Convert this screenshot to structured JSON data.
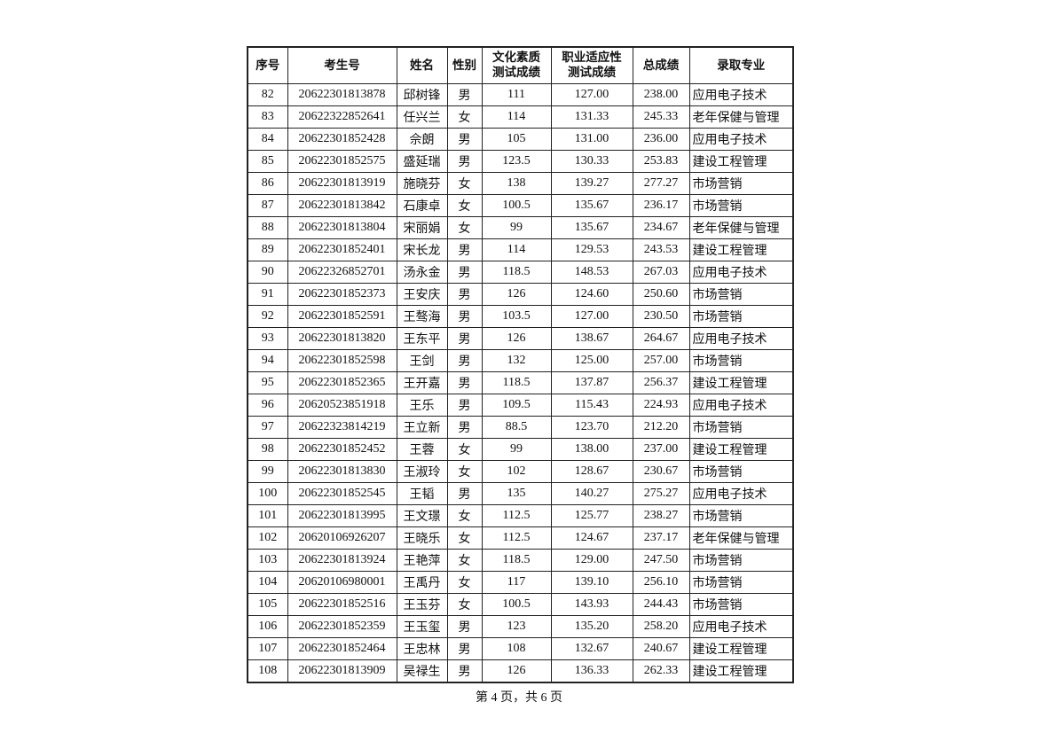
{
  "table": {
    "headers": [
      "序号",
      "考生号",
      "姓名",
      "性别",
      "文化素质\n测试成绩",
      "职业适应性\n测试成绩",
      "总成绩",
      "录取专业"
    ],
    "rows": [
      [
        "82",
        "20622301813878",
        "邱树锋",
        "男",
        "111",
        "127.00",
        "238.00",
        "应用电子技术"
      ],
      [
        "83",
        "20622322852641",
        "任兴兰",
        "女",
        "114",
        "131.33",
        "245.33",
        "老年保健与管理"
      ],
      [
        "84",
        "20622301852428",
        "佘朗",
        "男",
        "105",
        "131.00",
        "236.00",
        "应用电子技术"
      ],
      [
        "85",
        "20622301852575",
        "盛延瑞",
        "男",
        "123.5",
        "130.33",
        "253.83",
        "建设工程管理"
      ],
      [
        "86",
        "20622301813919",
        "施晓芬",
        "女",
        "138",
        "139.27",
        "277.27",
        "市场营销"
      ],
      [
        "87",
        "20622301813842",
        "石康卓",
        "女",
        "100.5",
        "135.67",
        "236.17",
        "市场营销"
      ],
      [
        "88",
        "20622301813804",
        "宋丽娟",
        "女",
        "99",
        "135.67",
        "234.67",
        "老年保健与管理"
      ],
      [
        "89",
        "20622301852401",
        "宋长龙",
        "男",
        "114",
        "129.53",
        "243.53",
        "建设工程管理"
      ],
      [
        "90",
        "20622326852701",
        "汤永金",
        "男",
        "118.5",
        "148.53",
        "267.03",
        "应用电子技术"
      ],
      [
        "91",
        "20622301852373",
        "王安庆",
        "男",
        "126",
        "124.60",
        "250.60",
        "市场营销"
      ],
      [
        "92",
        "20622301852591",
        "王骜海",
        "男",
        "103.5",
        "127.00",
        "230.50",
        "市场营销"
      ],
      [
        "93",
        "20622301813820",
        "王东平",
        "男",
        "126",
        "138.67",
        "264.67",
        "应用电子技术"
      ],
      [
        "94",
        "20622301852598",
        "王剑",
        "男",
        "132",
        "125.00",
        "257.00",
        "市场营销"
      ],
      [
        "95",
        "20622301852365",
        "王开嘉",
        "男",
        "118.5",
        "137.87",
        "256.37",
        "建设工程管理"
      ],
      [
        "96",
        "20620523851918",
        "王乐",
        "男",
        "109.5",
        "115.43",
        "224.93",
        "应用电子技术"
      ],
      [
        "97",
        "20622323814219",
        "王立新",
        "男",
        "88.5",
        "123.70",
        "212.20",
        "市场营销"
      ],
      [
        "98",
        "20622301852452",
        "王蓉",
        "女",
        "99",
        "138.00",
        "237.00",
        "建设工程管理"
      ],
      [
        "99",
        "20622301813830",
        "王淑玲",
        "女",
        "102",
        "128.67",
        "230.67",
        "市场营销"
      ],
      [
        "100",
        "20622301852545",
        "王韬",
        "男",
        "135",
        "140.27",
        "275.27",
        "应用电子技术"
      ],
      [
        "101",
        "20622301813995",
        "王文璟",
        "女",
        "112.5",
        "125.77",
        "238.27",
        "市场营销"
      ],
      [
        "102",
        "20620106926207",
        "王晓乐",
        "女",
        "112.5",
        "124.67",
        "237.17",
        "老年保健与管理"
      ],
      [
        "103",
        "20622301813924",
        "王艳萍",
        "女",
        "118.5",
        "129.00",
        "247.50",
        "市场营销"
      ],
      [
        "104",
        "20620106980001",
        "王禹丹",
        "女",
        "117",
        "139.10",
        "256.10",
        "市场营销"
      ],
      [
        "105",
        "20622301852516",
        "王玉芬",
        "女",
        "100.5",
        "143.93",
        "244.43",
        "市场营销"
      ],
      [
        "106",
        "20622301852359",
        "王玉玺",
        "男",
        "123",
        "135.20",
        "258.20",
        "应用电子技术"
      ],
      [
        "107",
        "20622301852464",
        "王忠林",
        "男",
        "108",
        "132.67",
        "240.67",
        "建设工程管理"
      ],
      [
        "108",
        "20622301813909",
        "吴禄生",
        "男",
        "126",
        "136.33",
        "262.33",
        "建设工程管理"
      ]
    ]
  },
  "footer": "第 4 页，共 6 页"
}
